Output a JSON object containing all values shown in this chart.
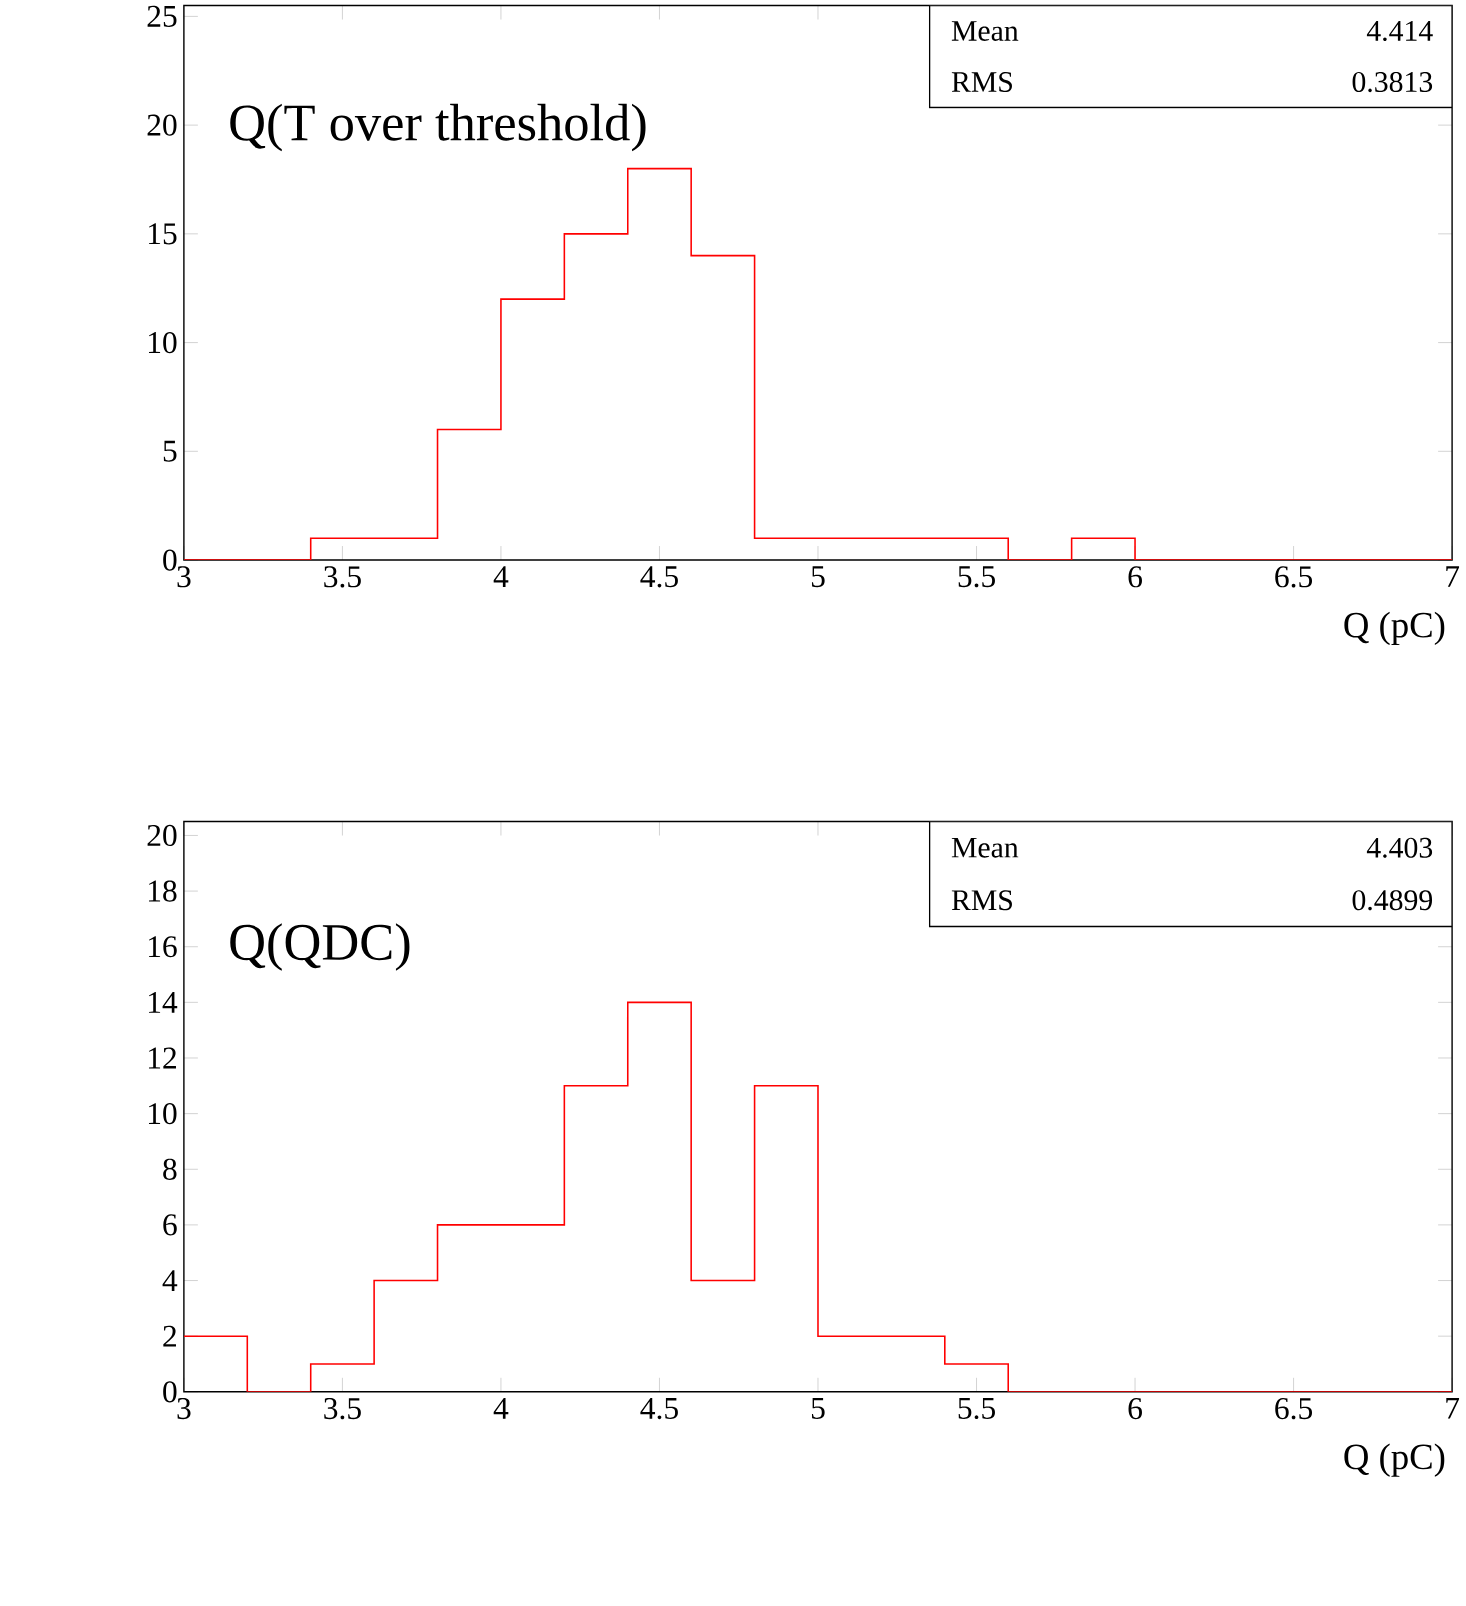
{
  "chart_data": [
    {
      "type": "histogram",
      "title": "Q(T over threshold)",
      "xlabel": "Q (pC)",
      "color": "#ff0000",
      "bins": [
        3.0,
        3.2,
        3.4,
        3.6,
        3.8,
        4.0,
        4.2,
        4.4,
        4.6,
        4.8,
        5.0,
        5.2,
        5.4,
        5.6,
        5.8,
        6.0,
        6.2,
        6.4,
        6.6,
        6.8,
        7.0
      ],
      "values": [
        0,
        0,
        1,
        1,
        6,
        12,
        15,
        18,
        14,
        1,
        1,
        1,
        1,
        0,
        1,
        0,
        0,
        0,
        0,
        0
      ],
      "xlim": [
        3,
        7
      ],
      "ylim": [
        0,
        25.5
      ],
      "xticks": [
        3,
        3.5,
        4,
        4.5,
        5,
        5.5,
        6,
        6.5,
        7
      ],
      "yticks": [
        0,
        5,
        10,
        15,
        20,
        25
      ],
      "annotations": [
        "Mean",
        "4.414",
        "RMS",
        "0.3813"
      ]
    },
    {
      "type": "histogram",
      "title": "Q(QDC)",
      "xlabel": "Q (pC)",
      "color": "#ff0000",
      "bins": [
        3.0,
        3.2,
        3.4,
        3.6,
        3.8,
        4.0,
        4.2,
        4.4,
        4.6,
        4.8,
        5.0,
        5.2,
        5.4,
        5.6,
        5.8,
        6.0,
        6.2,
        6.4,
        6.6,
        6.8,
        7.0
      ],
      "values": [
        2,
        0,
        1,
        4,
        6,
        6,
        11,
        14,
        4,
        11,
        2,
        2,
        1,
        0,
        0,
        0,
        0,
        0,
        0,
        0
      ],
      "xlim": [
        3,
        7
      ],
      "ylim": [
        0,
        20.5
      ],
      "xticks": [
        3,
        3.5,
        4,
        4.5,
        5,
        5.5,
        6,
        6.5,
        7
      ],
      "yticks": [
        0,
        2,
        4,
        6,
        8,
        10,
        12,
        14,
        16,
        18,
        20
      ],
      "annotations": [
        "Mean",
        "4.403",
        "RMS",
        "0.4899"
      ]
    }
  ]
}
